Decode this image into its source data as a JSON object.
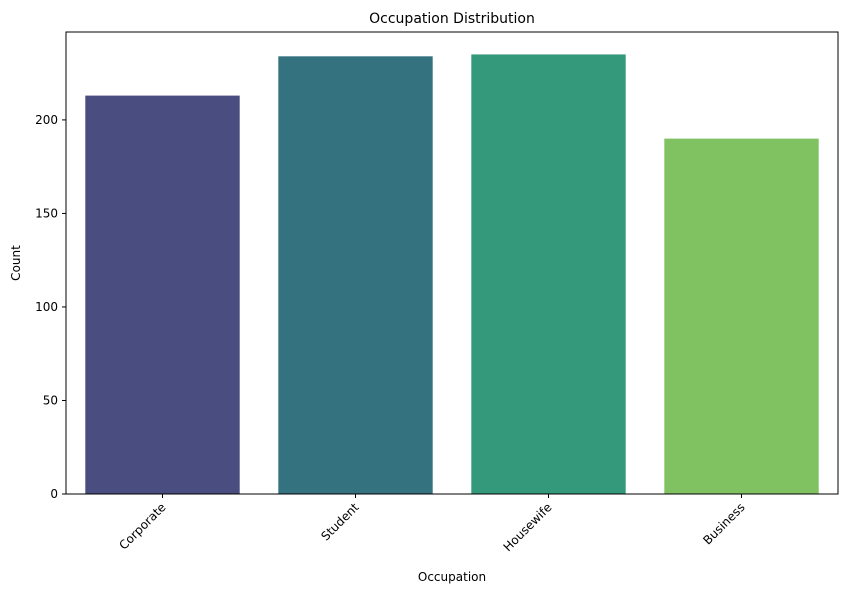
{
  "chart_data": {
    "type": "bar",
    "title": "Occupation Distribution",
    "xlabel": "Occupation",
    "ylabel": "Count",
    "categories": [
      "Corporate",
      "Student",
      "Housewife",
      "Business"
    ],
    "values": [
      213,
      234,
      235,
      190
    ],
    "colors": [
      "#4a4d80",
      "#35727f",
      "#33997a",
      "#80c262"
    ],
    "ylim": [
      0,
      247
    ],
    "yticks": [
      0,
      50,
      100,
      150,
      200
    ],
    "xtick_rotation": 45,
    "grid": false,
    "legend": false
  }
}
